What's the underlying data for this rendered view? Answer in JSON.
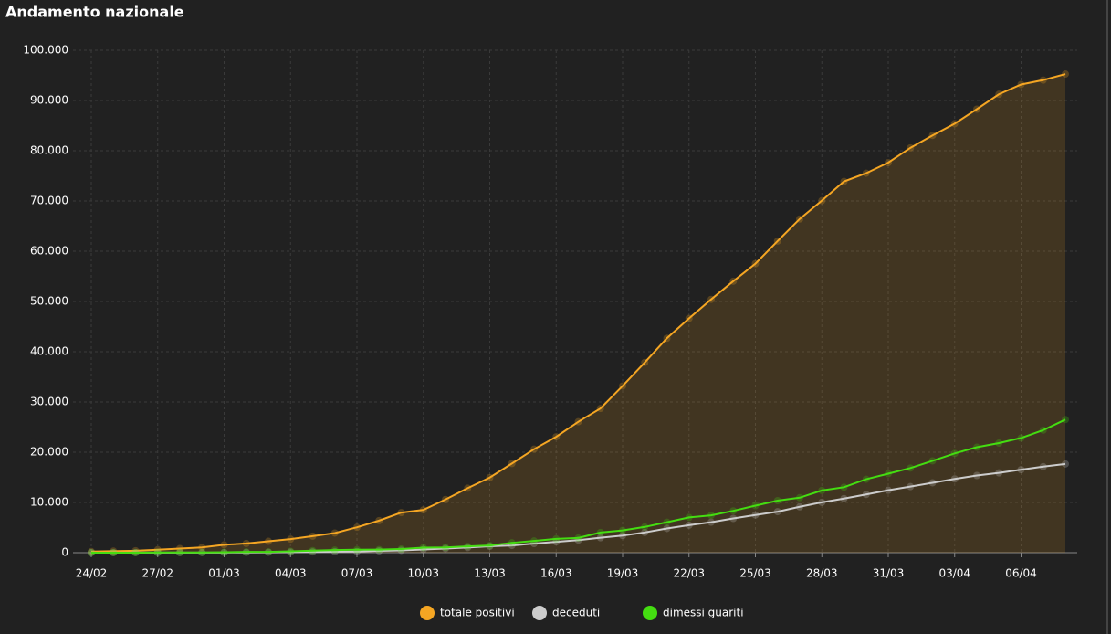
{
  "chart_data": {
    "type": "line",
    "title": "Andamento nazionale",
    "categories": [
      "24/02",
      null,
      null,
      "27/02",
      null,
      null,
      "01/03",
      null,
      null,
      "04/03",
      null,
      null,
      "07/03",
      null,
      null,
      "10/03",
      null,
      null,
      "13/03",
      null,
      null,
      "16/03",
      null,
      null,
      "19/03",
      null,
      null,
      "22/03",
      null,
      null,
      "25/03",
      null,
      null,
      "28/03",
      null,
      null,
      "31/03",
      null,
      null,
      "03/04",
      null,
      null,
      "06/04",
      null,
      null
    ],
    "series": [
      {
        "name": "totale positivi",
        "color": "#f5a623",
        "fill_area": true,
        "values": [
          221,
          311,
          385,
          588,
          821,
          1049,
          1577,
          1835,
          2263,
          2706,
          3296,
          3916,
          5061,
          6387,
          7985,
          8514,
          10590,
          12839,
          14955,
          17750,
          20603,
          23073,
          26062,
          28710,
          33190,
          37860,
          42681,
          46638,
          50418,
          54030,
          57521,
          62013,
          66414,
          70065,
          73880,
          75528,
          77635,
          80572,
          83049,
          85388,
          88274,
          91246,
          93187,
          94067,
          95262
        ]
      },
      {
        "name": "deceduti",
        "color": "#cccccc",
        "values": [
          7,
          10,
          12,
          17,
          21,
          29,
          34,
          52,
          79,
          107,
          148,
          197,
          233,
          366,
          463,
          631,
          827,
          1016,
          1266,
          1441,
          1809,
          2158,
          2503,
          2978,
          3405,
          4032,
          4825,
          5476,
          6077,
          6820,
          7503,
          8165,
          9134,
          10023,
          10779,
          11591,
          12428,
          13155,
          13915,
          14681,
          15362,
          15887,
          16523,
          17127,
          17669
        ]
      },
      {
        "name": "dimessi guariti",
        "color": "#44dd11",
        "values": [
          1,
          1,
          3,
          45,
          46,
          50,
          83,
          149,
          160,
          276,
          414,
          523,
          589,
          622,
          724,
          1004,
          1045,
          1258,
          1439,
          1966,
          2335,
          2749,
          2941,
          4025,
          4440,
          5129,
          6072,
          7024,
          7432,
          8326,
          9362,
          10361,
          10950,
          12384,
          13030,
          14620,
          15729,
          16847,
          18278,
          19758,
          20996,
          21815,
          22837,
          24392,
          26491
        ]
      }
    ],
    "ylim": [
      0,
      100000
    ],
    "yticks": [
      0,
      {
        "value": 10000,
        "label": "10.000"
      },
      {
        "value": 20000,
        "label": "20.000"
      },
      {
        "value": 30000,
        "label": "30.000"
      },
      {
        "value": 40000,
        "label": "40.000"
      },
      {
        "value": 50000,
        "label": "50.000"
      },
      {
        "value": 60000,
        "label": "60.000"
      },
      {
        "value": 70000,
        "label": "70.000"
      },
      {
        "value": 80000,
        "label": "80.000"
      },
      {
        "value": 90000,
        "label": "90.000"
      },
      {
        "value": 100000,
        "label": "100.000"
      }
    ],
    "grid": true,
    "legend": "bottom"
  }
}
